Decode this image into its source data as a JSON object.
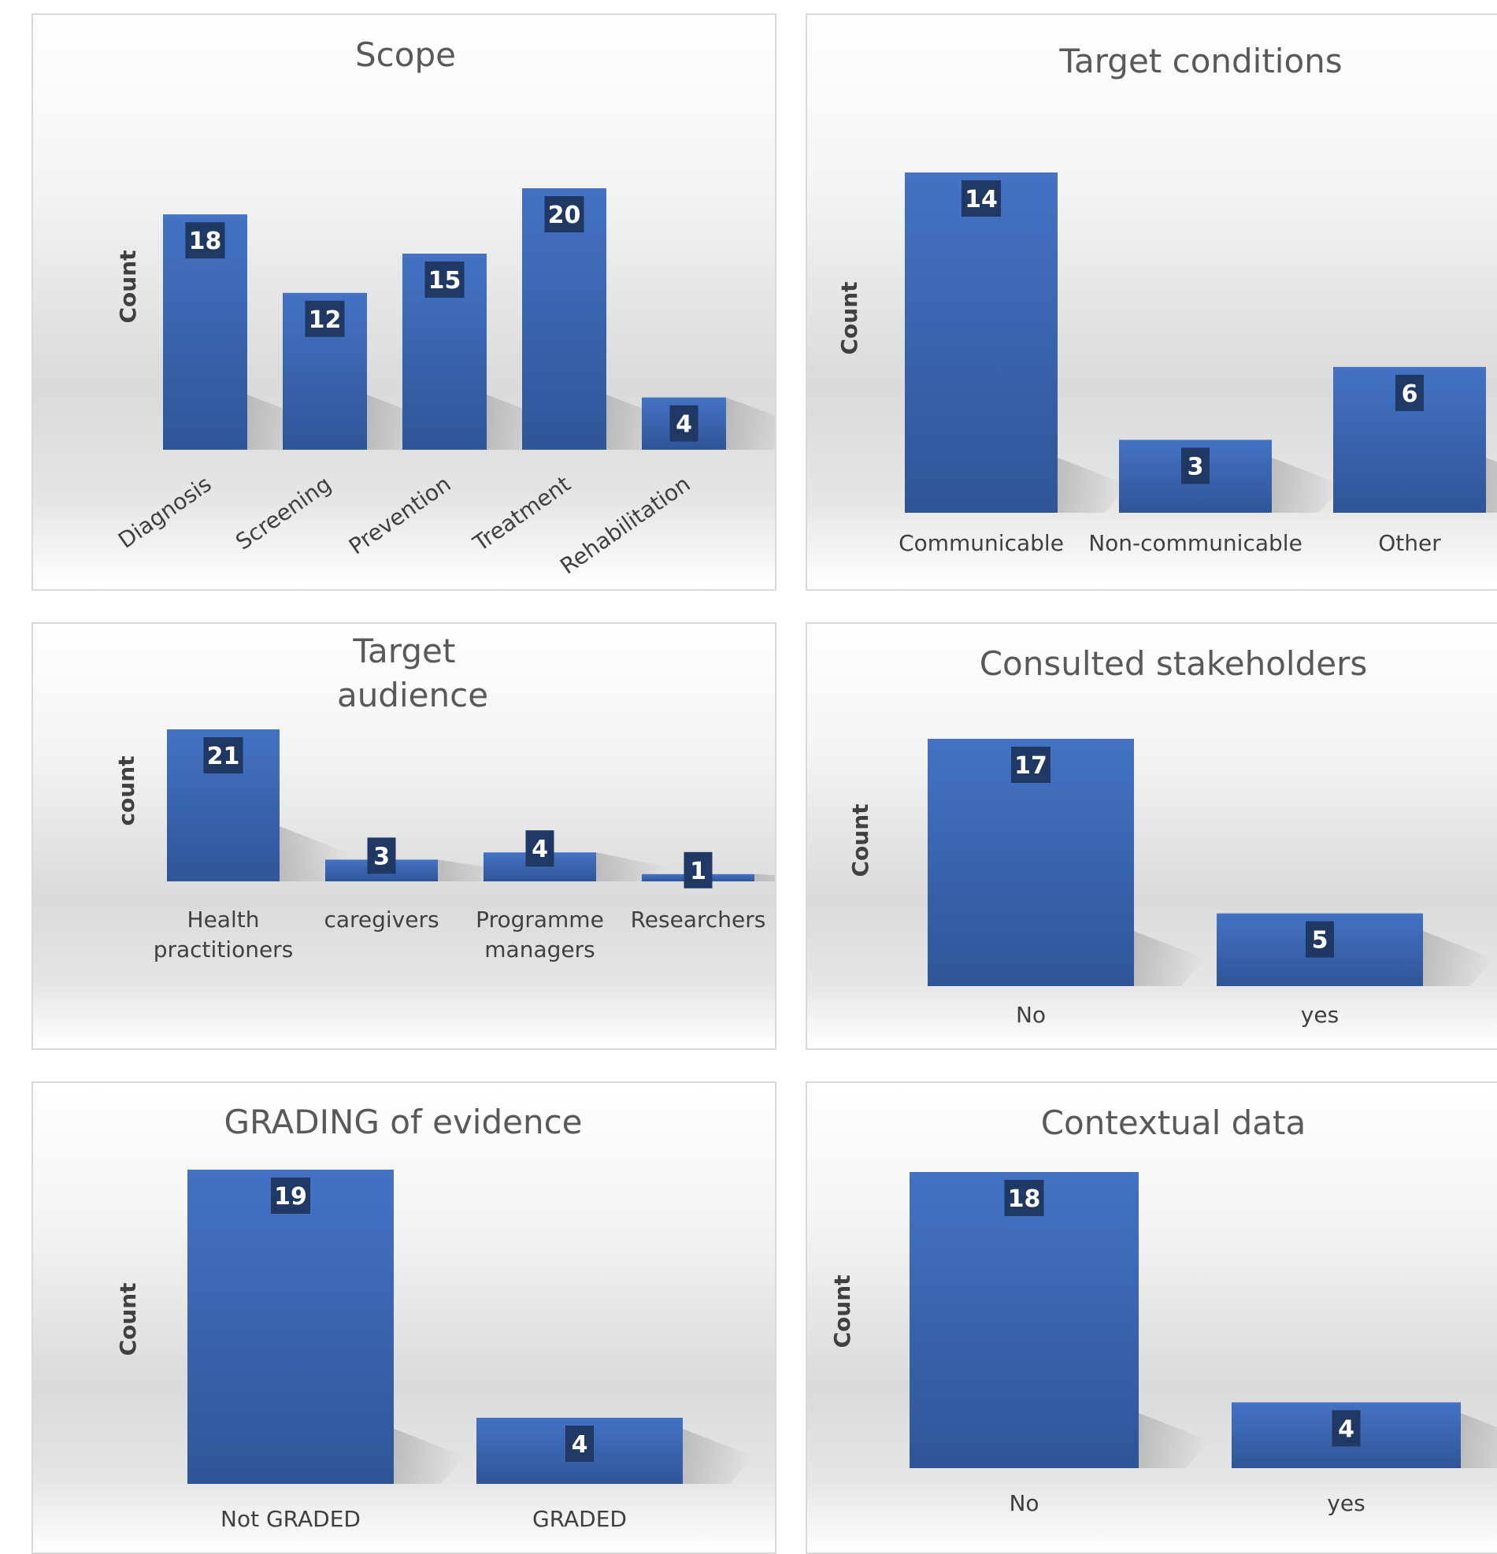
{
  "colors": {
    "bar_top": "#4472c4",
    "bar_bottom": "#2f5597",
    "label_box": "#1f3864",
    "shadow": "#9e9e9e"
  },
  "chart_data": [
    {
      "type": "bar",
      "title": "Scope",
      "ylabel": "Count",
      "categories": [
        "Diagnosis",
        "Screening",
        "Prevention",
        "Treatment",
        "Rehabilitation"
      ],
      "values": [
        18,
        12,
        15,
        20,
        4
      ],
      "ylim": [
        0,
        20
      ],
      "grid": false,
      "legend": "none",
      "rotated_labels": true
    },
    {
      "type": "bar",
      "title": "Target conditions",
      "ylabel": "Count",
      "categories": [
        "Communicable",
        "Non-communicable",
        "Other"
      ],
      "values": [
        14,
        3,
        6
      ],
      "ylim": [
        0,
        14
      ],
      "grid": false,
      "legend": "none"
    },
    {
      "type": "bar",
      "title": "Target audience",
      "ylabel": "count",
      "categories": [
        "Health practitioners",
        "caregivers",
        "Programme managers",
        "Researchers"
      ],
      "values": [
        21,
        3,
        4,
        1
      ],
      "ylim": [
        0,
        21
      ],
      "grid": false,
      "legend": "none"
    },
    {
      "type": "bar",
      "title": "Consulted stakeholders",
      "ylabel": "Count",
      "categories": [
        "No",
        "yes"
      ],
      "values": [
        17,
        5
      ],
      "ylim": [
        0,
        17
      ],
      "grid": false,
      "legend": "none"
    },
    {
      "type": "bar",
      "title": "GRADING of evidence",
      "ylabel": "Count",
      "categories": [
        "Not GRADED",
        "GRADED"
      ],
      "values": [
        19,
        4
      ],
      "ylim": [
        0,
        19
      ],
      "grid": false,
      "legend": "none"
    },
    {
      "type": "bar",
      "title": "Contextual data",
      "ylabel": "Count",
      "categories": [
        "No",
        "yes"
      ],
      "values": [
        18,
        4
      ],
      "ylim": [
        0,
        18
      ],
      "grid": false,
      "legend": "none"
    }
  ]
}
